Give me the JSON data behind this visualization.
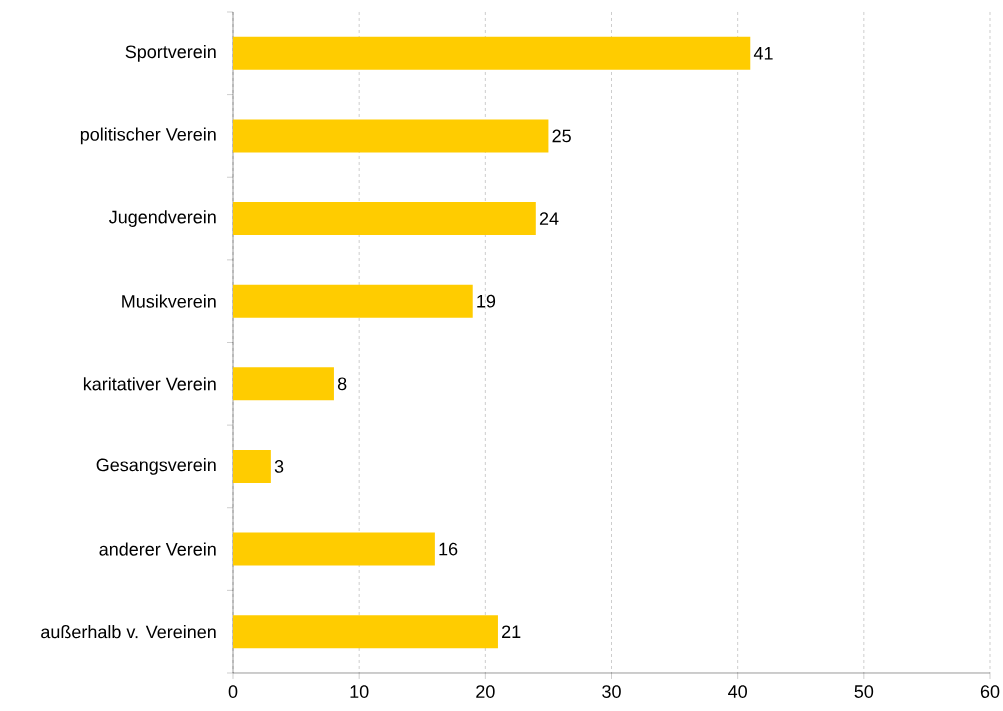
{
  "chart_data": {
    "type": "bar",
    "orientation": "horizontal",
    "categories": [
      "Sportverein",
      "politischer Verein",
      "Jugendverein",
      "Musikverein",
      "karitativer Verein",
      "Gesangsverein",
      "anderer Verein",
      "außerhalb v. Vereinen"
    ],
    "values": [
      41,
      25,
      24,
      19,
      8,
      3,
      16,
      21
    ],
    "color": "#ffcc00",
    "xlim": [
      0,
      60
    ],
    "xticks": [
      0,
      10,
      20,
      30,
      40,
      50,
      60
    ],
    "grid": "x",
    "data_labels": true
  }
}
